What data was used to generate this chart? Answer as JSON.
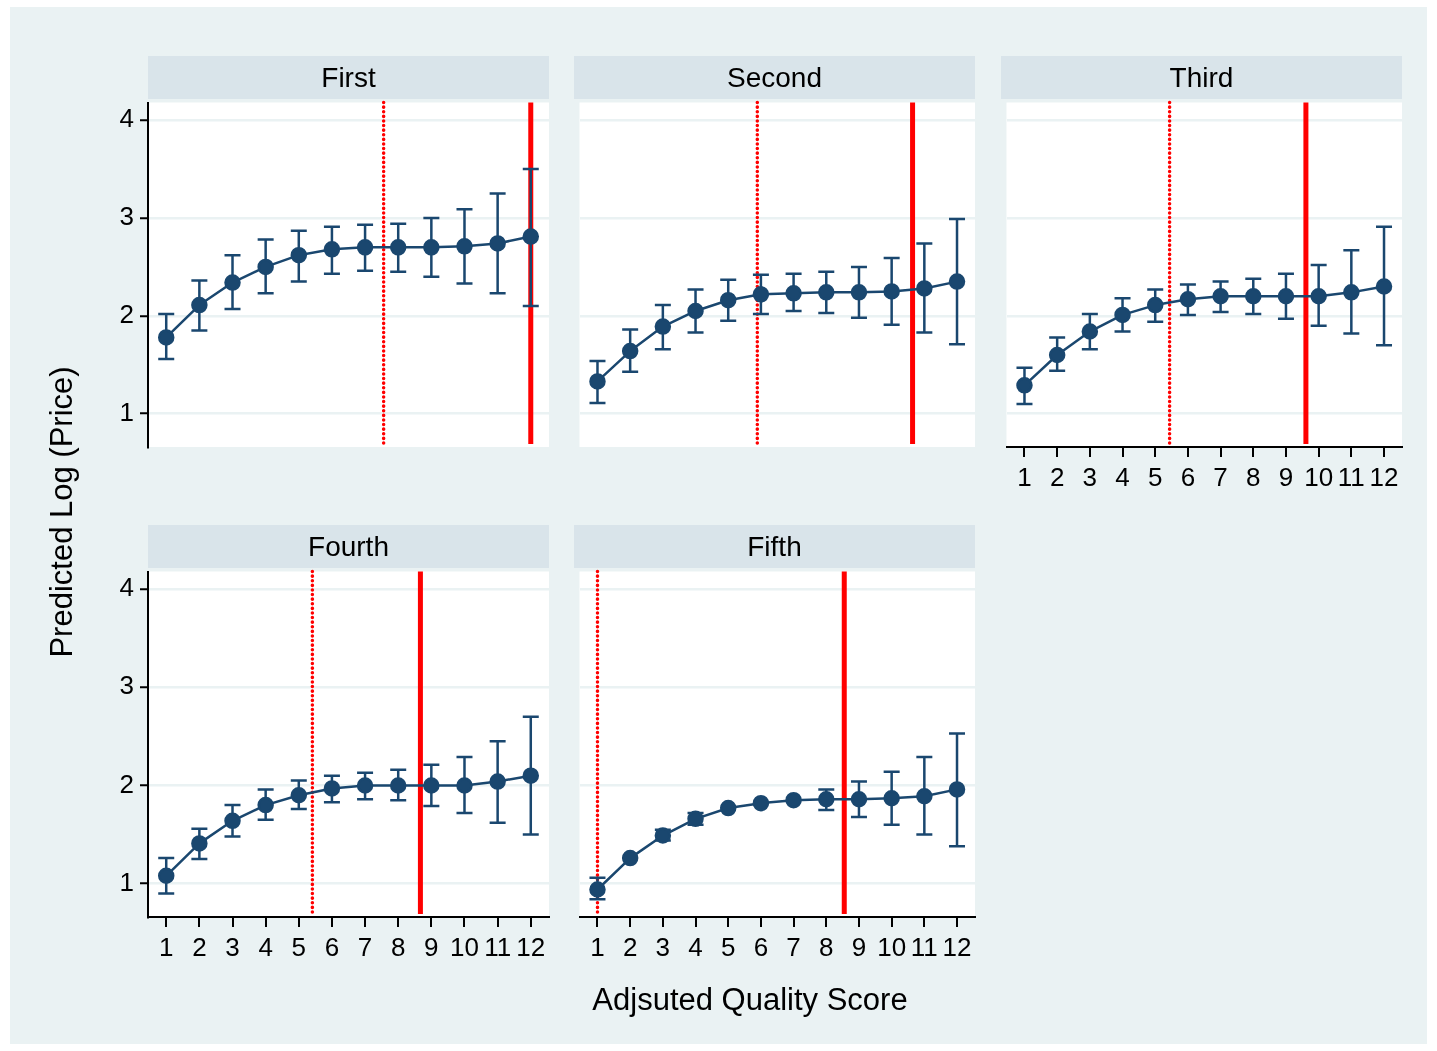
{
  "chart_data": [
    {
      "type": "line",
      "title": "First",
      "ylabel": "Predicted Log (Price)",
      "x": [
        1,
        2,
        3,
        4,
        5,
        6,
        7,
        8,
        9,
        10,
        11,
        12
      ],
      "color": "#1a476f",
      "marker": "circle",
      "line_style": "solid",
      "grid": "y",
      "tick_labels": "y",
      "xlim": [
        0.45,
        12.55
      ],
      "ylim": [
        0.66,
        4.18
      ],
      "xticks": [
        1,
        2,
        3,
        4,
        5,
        6,
        7,
        8,
        9,
        10,
        11,
        12
      ],
      "yticks": [
        1,
        2,
        3,
        4
      ],
      "values": [
        1.78,
        2.11,
        2.34,
        2.5,
        2.62,
        2.68,
        2.7,
        2.7,
        2.7,
        2.71,
        2.74,
        2.81
      ],
      "errors": [
        [
          1.56,
          2.02
        ],
        [
          1.85,
          2.36
        ],
        [
          2.07,
          2.62
        ],
        [
          2.23,
          2.78
        ],
        [
          2.35,
          2.87
        ],
        [
          2.43,
          2.91
        ],
        [
          2.46,
          2.93
        ],
        [
          2.45,
          2.94
        ],
        [
          2.4,
          3.0
        ],
        [
          2.33,
          3.09
        ],
        [
          2.23,
          3.25
        ],
        [
          2.1,
          3.5
        ]
      ],
      "ref_lines": [
        {
          "axis": "x",
          "value": 7.56,
          "line_style": "dotted",
          "color": "#ff0000"
        },
        {
          "axis": "x",
          "value": 12.0,
          "line_style": "solid",
          "color": "#ff0000"
        }
      ]
    },
    {
      "type": "line",
      "title": "Second",
      "x": [
        1,
        2,
        3,
        4,
        5,
        6,
        7,
        8,
        9,
        10,
        11,
        12
      ],
      "color": "#1a476f",
      "marker": "circle",
      "line_style": "solid",
      "grid": "y",
      "tick_labels": false,
      "xlim": [
        0.45,
        12.55
      ],
      "ylim": [
        0.66,
        4.18
      ],
      "xticks": [
        1,
        2,
        3,
        4,
        5,
        6,
        7,
        8,
        9,
        10,
        11,
        12
      ],
      "yticks": [
        1,
        2,
        3,
        4
      ],
      "values": [
        1.33,
        1.64,
        1.89,
        2.05,
        2.16,
        2.22,
        2.23,
        2.24,
        2.24,
        2.25,
        2.28,
        2.35
      ],
      "errors": [
        [
          1.11,
          1.54
        ],
        [
          1.43,
          1.86
        ],
        [
          1.66,
          2.11
        ],
        [
          1.83,
          2.27
        ],
        [
          1.95,
          2.37
        ],
        [
          2.02,
          2.42
        ],
        [
          2.05,
          2.43
        ],
        [
          2.03,
          2.45
        ],
        [
          1.98,
          2.5
        ],
        [
          1.91,
          2.59
        ],
        [
          1.83,
          2.74
        ],
        [
          1.71,
          2.99
        ]
      ],
      "ref_lines": [
        {
          "axis": "x",
          "value": 5.89,
          "line_style": "dotted",
          "color": "#ff0000"
        },
        {
          "axis": "x",
          "value": 10.64,
          "line_style": "solid",
          "color": "#ff0000"
        }
      ]
    },
    {
      "type": "line",
      "title": "Third",
      "x": [
        1,
        2,
        3,
        4,
        5,
        6,
        7,
        8,
        9,
        10,
        11,
        12
      ],
      "color": "#1a476f",
      "marker": "circle",
      "line_style": "solid",
      "grid": "y",
      "tick_labels": "x",
      "xlim": [
        0.45,
        12.55
      ],
      "ylim": [
        0.66,
        4.18
      ],
      "xticks": [
        1,
        2,
        3,
        4,
        5,
        6,
        7,
        8,
        9,
        10,
        11,
        12
      ],
      "yticks": [
        1,
        2,
        3,
        4
      ],
      "values": [
        1.29,
        1.6,
        1.84,
        2.01,
        2.11,
        2.17,
        2.2,
        2.2,
        2.2,
        2.2,
        2.24,
        2.3
      ],
      "errors": [
        [
          1.1,
          1.47
        ],
        [
          1.44,
          1.78
        ],
        [
          1.66,
          2.02
        ],
        [
          1.84,
          2.18
        ],
        [
          1.94,
          2.27
        ],
        [
          2.01,
          2.32
        ],
        [
          2.04,
          2.35
        ],
        [
          2.02,
          2.38
        ],
        [
          1.97,
          2.43
        ],
        [
          1.9,
          2.52
        ],
        [
          1.82,
          2.67
        ],
        [
          1.7,
          2.91
        ]
      ],
      "ref_lines": [
        {
          "axis": "x",
          "value": 5.44,
          "line_style": "dotted",
          "color": "#ff0000"
        },
        {
          "axis": "x",
          "value": 9.61,
          "line_style": "solid",
          "color": "#ff0000"
        }
      ]
    },
    {
      "type": "line",
      "title": "Fourth",
      "x": [
        1,
        2,
        3,
        4,
        5,
        6,
        7,
        8,
        9,
        10,
        11,
        12
      ],
      "color": "#1a476f",
      "marker": "circle",
      "line_style": "solid",
      "grid": "y",
      "xlim": [
        0.45,
        12.55
      ],
      "ylim": [
        0.66,
        4.18
      ],
      "xticks": [
        1,
        2,
        3,
        4,
        5,
        6,
        7,
        8,
        9,
        10,
        11,
        12
      ],
      "yticks": [
        1,
        2,
        3,
        4
      ],
      "values": [
        1.08,
        1.41,
        1.64,
        1.8,
        1.9,
        1.97,
        2.0,
        2.0,
        2.0,
        2.0,
        2.04,
        2.1
      ],
      "errors": [
        [
          0.9,
          1.26
        ],
        [
          1.25,
          1.56
        ],
        [
          1.48,
          1.8
        ],
        [
          1.65,
          1.96
        ],
        [
          1.76,
          2.05
        ],
        [
          1.83,
          2.1
        ],
        [
          1.86,
          2.13
        ],
        [
          1.85,
          2.16
        ],
        [
          1.79,
          2.21
        ],
        [
          1.72,
          2.29
        ],
        [
          1.62,
          2.45
        ],
        [
          1.5,
          2.7
        ]
      ],
      "ref_lines": [
        {
          "axis": "x",
          "value": 5.41,
          "line_style": "dotted",
          "color": "#ff0000"
        },
        {
          "axis": "x",
          "value": 8.67,
          "line_style": "solid",
          "color": "#ff0000"
        }
      ]
    },
    {
      "type": "line",
      "title": "Fifth",
      "xlabel": "Adjsuted Quality Score",
      "x": [
        1,
        2,
        3,
        4,
        5,
        6,
        7,
        8,
        9,
        10,
        11,
        12
      ],
      "color": "#1a476f",
      "marker": "circle",
      "line_style": "solid",
      "grid": "y",
      "tick_labels": "x",
      "xlim": [
        0.45,
        12.55
      ],
      "ylim": [
        0.66,
        4.18
      ],
      "xticks": [
        1,
        2,
        3,
        4,
        5,
        6,
        7,
        8,
        9,
        10,
        11,
        12
      ],
      "yticks": [
        1,
        2,
        3,
        4
      ],
      "values": [
        0.94,
        1.26,
        1.49,
        1.66,
        1.77,
        1.82,
        1.85,
        1.86,
        1.86,
        1.87,
        1.89,
        1.96
      ],
      "errors": [
        [
          0.84,
          1.06
        ],
        null,
        [
          1.44,
          1.55
        ],
        [
          1.6,
          1.72
        ],
        null,
        null,
        null,
        [
          1.75,
          1.96
        ],
        [
          1.68,
          2.04
        ],
        [
          1.6,
          2.14
        ],
        [
          1.5,
          2.29
        ],
        [
          1.38,
          2.53
        ]
      ],
      "ref_lines": [
        {
          "axis": "x",
          "value": 1.0,
          "line_style": "dotted",
          "color": "#ff0000"
        },
        {
          "axis": "x",
          "value": 8.55,
          "line_style": "solid",
          "color": "#ff0000"
        }
      ]
    }
  ]
}
